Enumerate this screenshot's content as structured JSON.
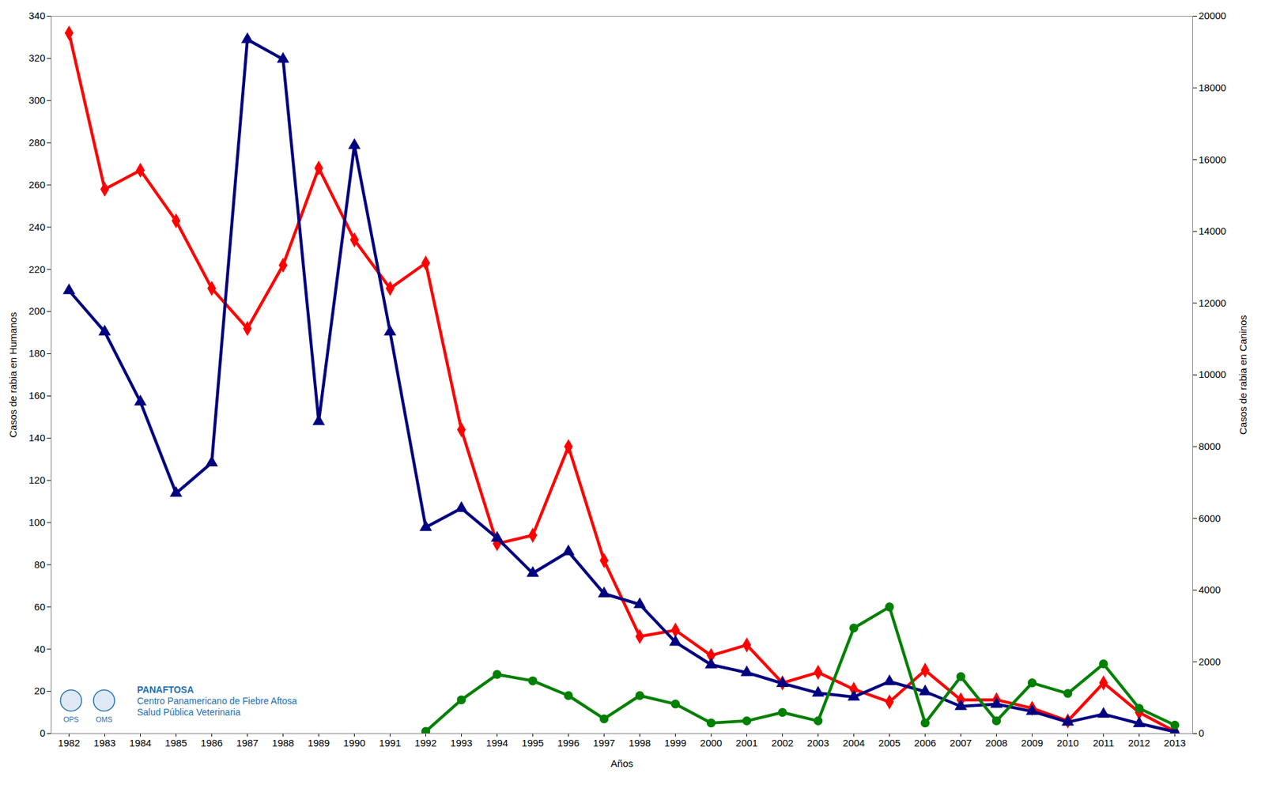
{
  "chart_data": {
    "type": "line",
    "x_label": "Años",
    "y_label": "Casos de rabia en Humanos",
    "y2_label": "Casos de rabia en Caninos",
    "x": [
      1982,
      1983,
      1984,
      1985,
      1986,
      1987,
      1988,
      1989,
      1990,
      1991,
      1992,
      1993,
      1994,
      1995,
      1996,
      1997,
      1998,
      1999,
      2000,
      2001,
      2002,
      2003,
      2004,
      2005,
      2006,
      2007,
      2008,
      2009,
      2010,
      2011,
      2012,
      2013
    ],
    "ylim": [
      0,
      340
    ],
    "yticks": [
      0,
      20,
      40,
      60,
      80,
      100,
      120,
      140,
      160,
      180,
      200,
      220,
      240,
      260,
      280,
      300,
      320,
      340
    ],
    "y2lim": [
      0,
      20000
    ],
    "y2ticks": [
      0,
      2000,
      4000,
      6000,
      8000,
      10000,
      12000,
      14000,
      16000,
      18000,
      20000
    ],
    "grid": false,
    "series": [
      {
        "color": "#ff0000",
        "marker": "diamond",
        "line_style": "solid",
        "values": [
          332,
          258,
          267,
          243,
          211,
          192,
          222,
          268,
          234,
          211,
          223,
          144,
          90,
          94,
          136,
          82,
          46,
          49,
          37,
          42,
          24,
          29,
          21,
          15,
          30,
          16,
          16,
          12,
          6,
          24,
          10,
          1
        ]
      },
      {
        "color": "#000080",
        "marker": "triangle",
        "line_style": "solid",
        "axis": "y2",
        "values": [
          12350,
          11200,
          9250,
          6700,
          7550,
          19350,
          18800,
          8700,
          16400,
          11200,
          5750,
          6280,
          5450,
          4470,
          5070,
          3900,
          3600,
          2550,
          1920,
          1700,
          1400,
          1130,
          1020,
          1450,
          1170,
          760,
          820,
          620,
          320,
          540,
          280,
          50
        ]
      },
      {
        "color": "#008000",
        "marker": "circle",
        "line_style": "solid",
        "values": [
          null,
          null,
          null,
          null,
          null,
          null,
          null,
          null,
          null,
          null,
          1,
          16,
          28,
          25,
          18,
          7,
          18,
          14,
          5,
          6,
          10,
          6,
          50,
          60,
          5,
          27,
          6,
          24,
          19,
          33,
          12,
          4
        ]
      }
    ],
    "annotations": [
      "PANAFTOSA",
      "Centro Panamericano de Fiebre Aftosa",
      "Salud Pública Veterinaria"
    ],
    "logo_labels": [
      "OPS",
      "OMS"
    ]
  }
}
